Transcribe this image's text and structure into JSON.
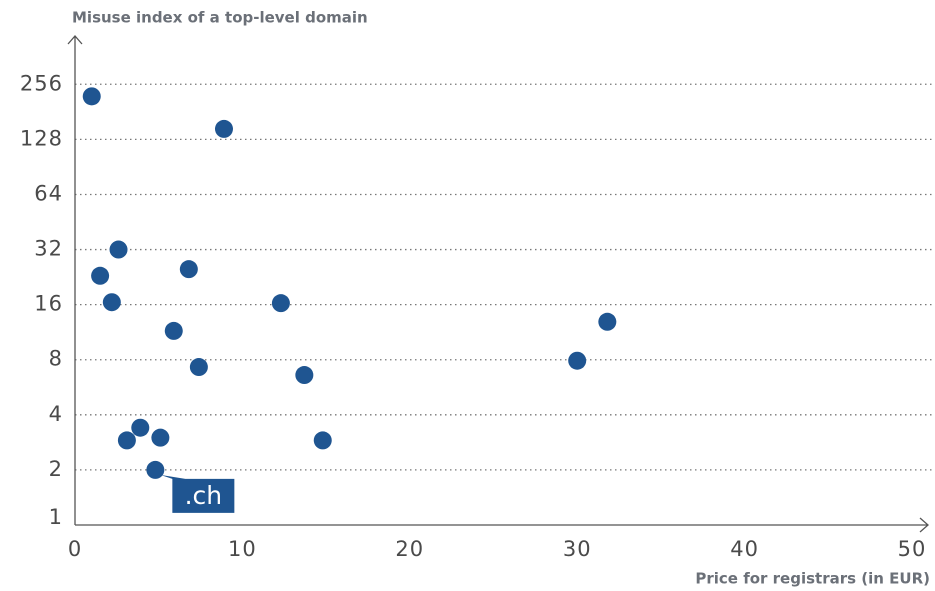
{
  "chart_data": {
    "type": "scatter",
    "ylabel": "Misuse index of a top-level domain",
    "xlabel": "Price for registrars (in EUR)",
    "color": "#1f5591",
    "log_y": true,
    "log_base": 2,
    "grid": true,
    "xlim": [
      0,
      50
    ],
    "xticks": [
      0,
      10,
      20,
      30,
      40,
      50
    ],
    "ylim": [
      1,
      470
    ],
    "yticks": [
      1,
      2,
      4,
      8,
      16,
      32,
      64,
      128,
      256
    ],
    "x": [
      1.0,
      8.9,
      2.6,
      1.5,
      6.8,
      2.2,
      12.3,
      5.9,
      31.8,
      30.0,
      7.4,
      13.7,
      3.9,
      3.1,
      5.1,
      14.8,
      4.8
    ],
    "y": [
      220,
      146,
      32,
      23,
      25,
      16.5,
      16.3,
      11.5,
      12.9,
      7.9,
      7.3,
      6.6,
      3.4,
      2.9,
      3.0,
      2.9,
      2.0
    ],
    "annotations": [
      {
        "text": ".ch",
        "x": 4.8,
        "y": 2.0
      }
    ]
  }
}
